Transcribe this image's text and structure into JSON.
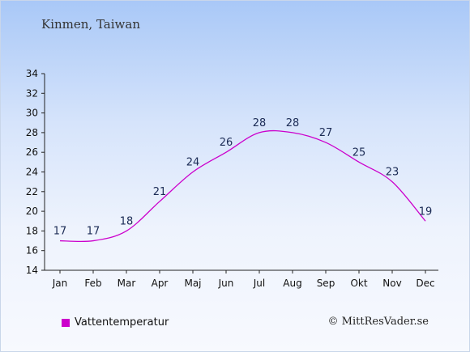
{
  "header": {
    "subtitle": "Kinmen, Taiwan"
  },
  "legend": {
    "label": "Vattentemperatur",
    "color": "#cc00cc"
  },
  "footer": {
    "copyright": "© MittResVader.se"
  },
  "chart_data": {
    "type": "line",
    "title": "",
    "subtitle": "Kinmen, Taiwan",
    "xlabel": "",
    "ylabel": "",
    "categories": [
      "Jan",
      "Feb",
      "Mar",
      "Apr",
      "Maj",
      "Jun",
      "Jul",
      "Aug",
      "Sep",
      "Okt",
      "Nov",
      "Dec"
    ],
    "series": [
      {
        "name": "Vattentemperatur",
        "values": [
          17,
          17,
          18,
          21,
          24,
          26,
          28,
          28,
          27,
          25,
          23,
          19
        ],
        "color": "#cc00cc"
      }
    ],
    "ylim": [
      14,
      34
    ],
    "yticks": [
      14,
      16,
      18,
      20,
      22,
      24,
      26,
      28,
      30,
      32,
      34
    ],
    "grid": false,
    "legend_position": "bottom-left"
  }
}
